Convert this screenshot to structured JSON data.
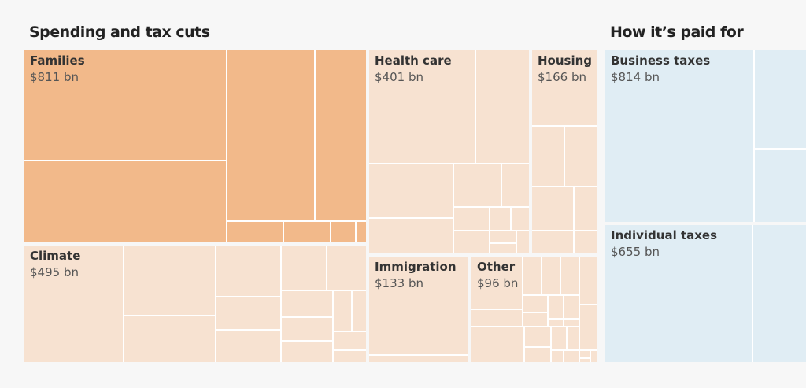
{
  "left_title": "Spending and tax cuts",
  "right_title": "How it’s paid for",
  "chart_data": {
    "type": "treemap",
    "title": "",
    "colors": {
      "families": "#f2b98a",
      "spending": "#f7e2d1",
      "funding": "#e0edf4",
      "gap": "#ffffff"
    },
    "unit": "$ bn",
    "groups": [
      {
        "name": "Families",
        "value_label": "$811 bn",
        "value": 811,
        "side": "spending"
      },
      {
        "name": "Climate",
        "value_label": "$495 bn",
        "value": 495,
        "side": "spending"
      },
      {
        "name": "Health care",
        "value_label": "$401 bn",
        "value": 401,
        "side": "spending"
      },
      {
        "name": "Housing",
        "value_label": "$166 bn",
        "value": 166,
        "side": "spending"
      },
      {
        "name": "Immigration",
        "value_label": "$133 bn",
        "value": 133,
        "side": "spending"
      },
      {
        "name": "Other",
        "value_label": "$96 bn",
        "value": 96,
        "side": "spending"
      },
      {
        "name": "Business taxes",
        "value_label": "$814 bn",
        "value": 814,
        "side": "funding"
      },
      {
        "name": "Individual taxes",
        "value_label": "$655 bn",
        "value": 655,
        "side": "funding"
      }
    ]
  }
}
